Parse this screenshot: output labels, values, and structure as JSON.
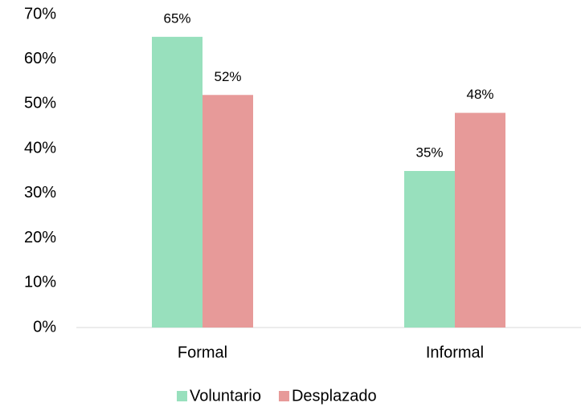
{
  "chart_data": {
    "type": "bar",
    "categories": [
      "Formal",
      "Informal"
    ],
    "series": [
      {
        "name": "Voluntario",
        "color": "#98e0bd",
        "values": [
          65,
          35
        ],
        "value_labels": [
          "65%",
          "35%"
        ]
      },
      {
        "name": "Desplazado",
        "color": "#e79a99",
        "values": [
          52,
          48
        ],
        "value_labels": [
          "52%",
          "48%"
        ]
      }
    ],
    "ylim": [
      0,
      70
    ],
    "yticks": [
      {
        "value": 0,
        "label": "0%"
      },
      {
        "value": 10,
        "label": "10%"
      },
      {
        "value": 20,
        "label": "20%"
      },
      {
        "value": 30,
        "label": "30%"
      },
      {
        "value": 40,
        "label": "40%"
      },
      {
        "value": 50,
        "label": "50%"
      },
      {
        "value": 60,
        "label": "60%"
      },
      {
        "value": 70,
        "label": "70%"
      }
    ],
    "grid": false,
    "legend": "bottom"
  }
}
